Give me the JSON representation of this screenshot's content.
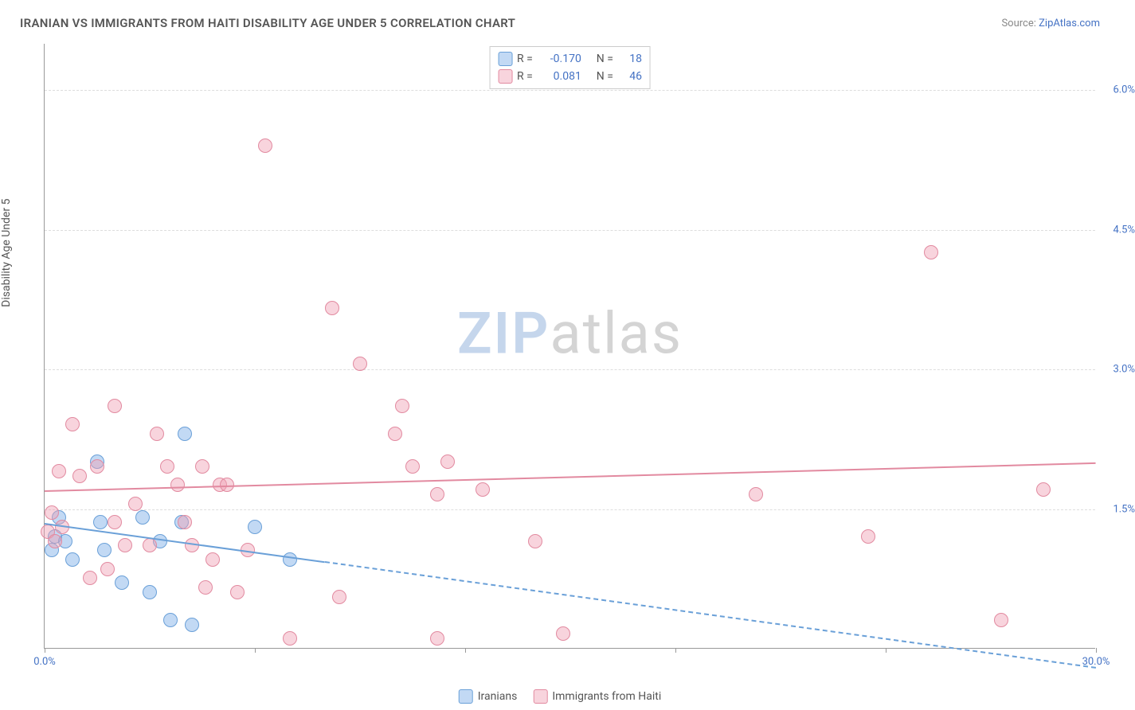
{
  "title": "IRANIAN VS IMMIGRANTS FROM HAITI DISABILITY AGE UNDER 5 CORRELATION CHART",
  "source_label": "Source:",
  "source_name": "ZipAtlas.com",
  "y_axis_label": "Disability Age Under 5",
  "watermark": {
    "part1": "ZIP",
    "part2": "atlas"
  },
  "chart": {
    "type": "scatter",
    "xlim": [
      0,
      30
    ],
    "ylim": [
      0,
      6.5
    ],
    "x_ticks": [
      0,
      6,
      12,
      18,
      24,
      30
    ],
    "x_tick_labels": {
      "0": "0.0%",
      "30": "30.0%"
    },
    "y_ticks": [
      1.5,
      3.0,
      4.5,
      6.0
    ],
    "y_tick_labels": [
      "1.5%",
      "3.0%",
      "4.5%",
      "6.0%"
    ],
    "grid_color": "#dddddd",
    "background_color": "#ffffff",
    "marker_radius": 9,
    "marker_border_width": 1.5,
    "series": [
      {
        "name": "Iranians",
        "fill": "rgba(120, 170, 230, 0.45)",
        "stroke": "#6aa0d8",
        "R": "-0.170",
        "N": "18",
        "trend": {
          "y_at_x0": 1.35,
          "y_at_x30": -0.2,
          "solid_until_x": 8.0
        },
        "points": [
          [
            0.2,
            1.05
          ],
          [
            0.3,
            1.2
          ],
          [
            0.4,
            1.4
          ],
          [
            0.6,
            1.15
          ],
          [
            0.8,
            0.95
          ],
          [
            1.5,
            2.0
          ],
          [
            1.6,
            1.35
          ],
          [
            1.7,
            1.05
          ],
          [
            2.2,
            0.7
          ],
          [
            2.8,
            1.4
          ],
          [
            3.0,
            0.6
          ],
          [
            3.3,
            1.15
          ],
          [
            3.6,
            0.3
          ],
          [
            4.0,
            2.3
          ],
          [
            4.2,
            0.25
          ],
          [
            3.9,
            1.35
          ],
          [
            6.0,
            1.3
          ],
          [
            7.0,
            0.95
          ]
        ]
      },
      {
        "name": "Immigrants from Haiti",
        "fill": "rgba(240, 160, 180, 0.45)",
        "stroke": "#e28aa0",
        "R": "0.081",
        "N": "46",
        "trend": {
          "y_at_x0": 1.7,
          "y_at_x30": 2.0,
          "solid_until_x": 30
        },
        "points": [
          [
            0.1,
            1.25
          ],
          [
            0.3,
            1.15
          ],
          [
            0.4,
            1.9
          ],
          [
            0.5,
            1.3
          ],
          [
            0.8,
            2.4
          ],
          [
            1.0,
            1.85
          ],
          [
            1.3,
            0.75
          ],
          [
            1.5,
            1.95
          ],
          [
            2.0,
            1.35
          ],
          [
            2.3,
            1.1
          ],
          [
            2.0,
            2.6
          ],
          [
            3.2,
            2.3
          ],
          [
            3.5,
            1.95
          ],
          [
            3.8,
            1.75
          ],
          [
            4.2,
            1.1
          ],
          [
            4.5,
            1.95
          ],
          [
            4.6,
            0.65
          ],
          [
            5.0,
            1.75
          ],
          [
            4.8,
            0.95
          ],
          [
            5.2,
            1.75
          ],
          [
            5.5,
            0.6
          ],
          [
            6.3,
            5.4
          ],
          [
            7.0,
            0.1
          ],
          [
            8.2,
            3.65
          ],
          [
            8.4,
            0.55
          ],
          [
            9.0,
            3.05
          ],
          [
            10.0,
            2.3
          ],
          [
            10.2,
            2.6
          ],
          [
            10.5,
            1.95
          ],
          [
            11.2,
            1.65
          ],
          [
            11.2,
            0.1
          ],
          [
            11.5,
            2.0
          ],
          [
            14.0,
            1.15
          ],
          [
            14.8,
            0.15
          ],
          [
            12.5,
            1.7
          ],
          [
            20.3,
            1.65
          ],
          [
            23.5,
            1.2
          ],
          [
            27.3,
            0.3
          ],
          [
            28.5,
            1.7
          ],
          [
            25.3,
            4.25
          ],
          [
            5.8,
            1.05
          ],
          [
            1.8,
            0.85
          ],
          [
            2.6,
            1.55
          ],
          [
            3.0,
            1.1
          ],
          [
            4.0,
            1.35
          ],
          [
            0.2,
            1.45
          ]
        ]
      }
    ]
  },
  "stats_labels": {
    "R": "R =",
    "N": "N ="
  },
  "legend": [
    {
      "label": "Iranians",
      "fill": "rgba(120, 170, 230, 0.45)",
      "stroke": "#6aa0d8"
    },
    {
      "label": "Immigrants from Haiti",
      "fill": "rgba(240, 160, 180, 0.45)",
      "stroke": "#e28aa0"
    }
  ]
}
